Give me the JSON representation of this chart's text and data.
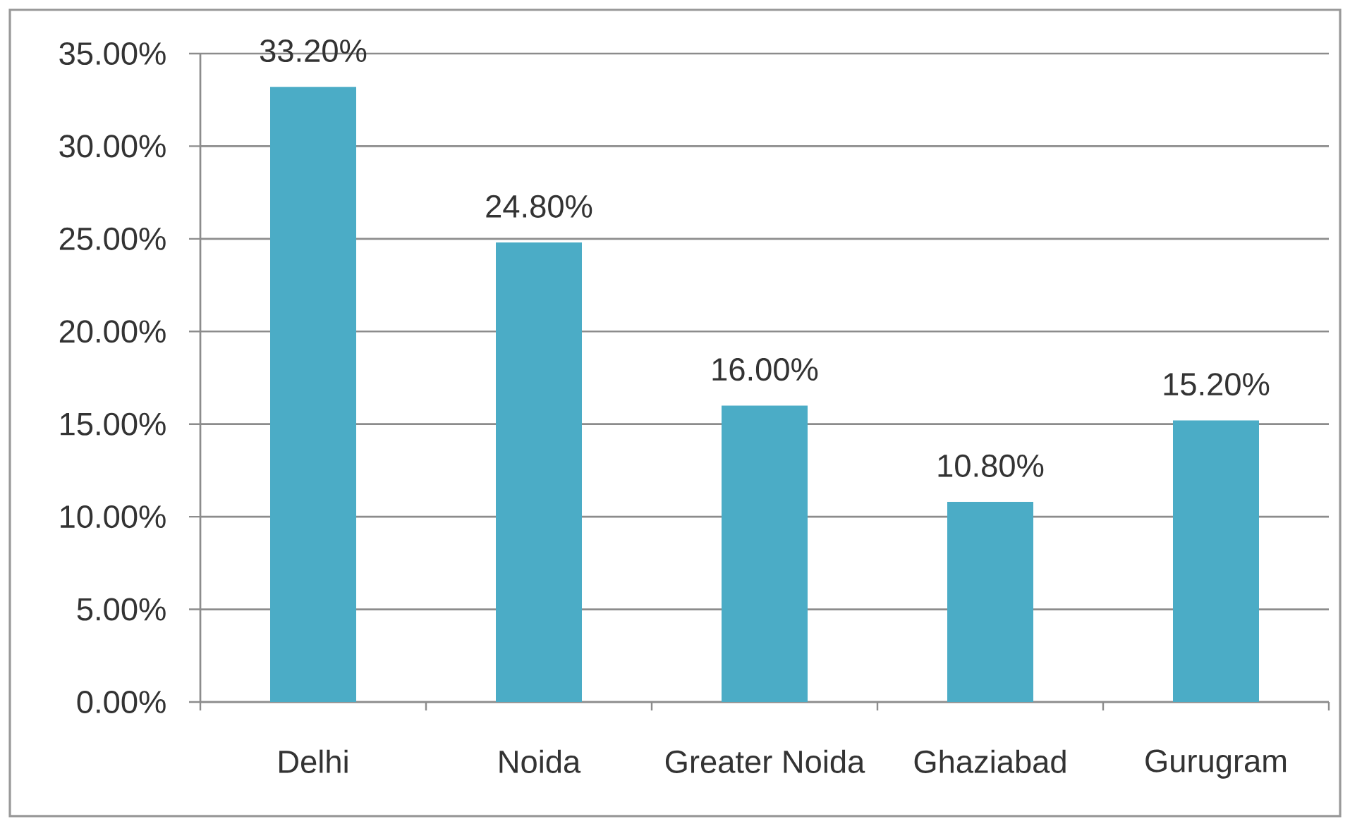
{
  "chart_data": {
    "type": "bar",
    "categories": [
      "Delhi",
      "Noida",
      "Greater Noida",
      "Ghaziabad",
      "Gurugram"
    ],
    "values": [
      33.2,
      24.8,
      16.0,
      10.8,
      15.2
    ],
    "color": "#4bacc6",
    "value_labels": [
      "33.20%",
      "24.80%",
      "16.00%",
      "10.80%",
      "15.20%"
    ],
    "ylim": [
      0,
      35
    ],
    "yticks": [
      {
        "value": 0,
        "label": "0.00%"
      },
      {
        "value": 5,
        "label": "5.00%"
      },
      {
        "value": 10,
        "label": "10.00%"
      },
      {
        "value": 15,
        "label": "15.00%"
      },
      {
        "value": 20,
        "label": "20.00%"
      },
      {
        "value": 25,
        "label": "25.00%"
      },
      {
        "value": 30,
        "label": "30.00%"
      },
      {
        "value": 35,
        "label": "35.00%"
      }
    ],
    "grid": "y"
  }
}
